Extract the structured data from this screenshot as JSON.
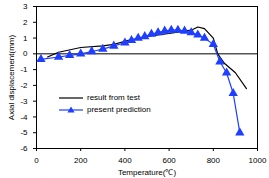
{
  "chart_data": {
    "type": "line",
    "x_label": "Temperature(℃)",
    "y_label": "Axial displacement(mm)",
    "xlim": [
      0,
      1000
    ],
    "xticks": [
      0,
      200,
      400,
      600,
      800,
      1000
    ],
    "ylim": [
      -6,
      3
    ],
    "yticks": [
      -6,
      -5,
      -4,
      -3,
      -2,
      -1,
      0,
      1,
      2,
      3
    ],
    "grid": false,
    "legend": "lower left",
    "series": [
      {
        "name": "result from test",
        "color": "#000000",
        "marker": "none",
        "line_style": "solid",
        "x": [
          50,
          100,
          200,
          300,
          350,
          400,
          500,
          600,
          700,
          730,
          760,
          800,
          820,
          850,
          900,
          950
        ],
        "values": [
          -0.2,
          0.1,
          0.4,
          0.5,
          0.6,
          0.8,
          1.1,
          1.3,
          1.5,
          1.7,
          1.6,
          1.0,
          0.0,
          -0.6,
          -1.2,
          -2.2
        ]
      },
      {
        "name": "present prediction",
        "color": "#1f3fff",
        "marker": "triangle",
        "line_style": "solid",
        "x": [
          20,
          100,
          150,
          200,
          250,
          300,
          350,
          400,
          430,
          460,
          490,
          520,
          550,
          580,
          610,
          640,
          670,
          700,
          730,
          760,
          800,
          830,
          860,
          890,
          920
        ],
        "values": [
          -0.35,
          -0.2,
          -0.1,
          0.0,
          0.15,
          0.3,
          0.5,
          0.7,
          0.85,
          1.0,
          1.1,
          1.25,
          1.35,
          1.45,
          1.5,
          1.5,
          1.45,
          1.35,
          1.2,
          1.0,
          0.6,
          -0.5,
          -1.2,
          -2.5,
          -5.0
        ]
      }
    ]
  }
}
